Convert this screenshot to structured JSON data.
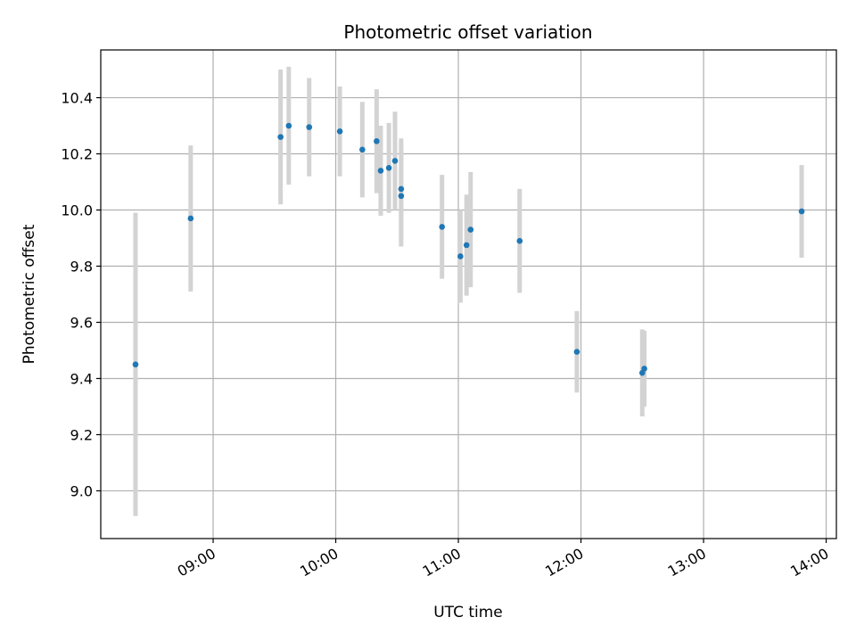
{
  "chart_data": {
    "type": "scatter",
    "title": "Photometric offset variation",
    "xlabel": "UTC time",
    "ylabel": "Photometric offset",
    "x_range": [
      "08:05",
      "14:05"
    ],
    "ylim": [
      8.83,
      10.57
    ],
    "x_ticks": [
      "09:00",
      "10:00",
      "11:00",
      "12:00",
      "13:00",
      "14:00"
    ],
    "y_ticks": [
      9.0,
      9.2,
      9.4,
      9.6,
      9.8,
      10.0,
      10.2,
      10.4
    ],
    "y_tick_labels": [
      "9.0",
      "9.2",
      "9.4",
      "9.6",
      "9.8",
      "10.0",
      "10.2",
      "10.4"
    ],
    "grid": true,
    "marker_color": "#1f77b4",
    "errorbar_color": "#d3d3d3",
    "points": [
      {
        "t": "08:22",
        "y": 9.45,
        "yerr": 0.54
      },
      {
        "t": "08:49",
        "y": 9.97,
        "yerr": 0.26
      },
      {
        "t": "09:33",
        "y": 10.26,
        "yerr": 0.24
      },
      {
        "t": "09:37",
        "y": 10.3,
        "yerr": 0.21
      },
      {
        "t": "09:47",
        "y": 10.295,
        "yerr": 0.175
      },
      {
        "t": "10:02",
        "y": 10.28,
        "yerr": 0.16
      },
      {
        "t": "10:13",
        "y": 10.215,
        "yerr": 0.17
      },
      {
        "t": "10:20",
        "y": 10.245,
        "yerr": 0.185
      },
      {
        "t": "10:22",
        "y": 10.14,
        "yerr": 0.16
      },
      {
        "t": "10:26",
        "y": 10.15,
        "yerr": 0.16
      },
      {
        "t": "10:29",
        "y": 10.175,
        "yerr": 0.175
      },
      {
        "t": "10:32",
        "y": 10.075,
        "yerr": 0.18
      },
      {
        "t": "10:32",
        "y": 10.05,
        "yerr": 0.18
      },
      {
        "t": "10:52",
        "y": 9.94,
        "yerr": 0.185
      },
      {
        "t": "11:01",
        "y": 9.835,
        "yerr": 0.165
      },
      {
        "t": "11:04",
        "y": 9.875,
        "yerr": 0.18
      },
      {
        "t": "11:06",
        "y": 9.93,
        "yerr": 0.205
      },
      {
        "t": "11:30",
        "y": 9.89,
        "yerr": 0.185
      },
      {
        "t": "11:58",
        "y": 9.495,
        "yerr": 0.145
      },
      {
        "t": "12:30",
        "y": 9.42,
        "yerr": 0.155
      },
      {
        "t": "12:31",
        "y": 9.435,
        "yerr": 0.135
      },
      {
        "t": "13:48",
        "y": 9.995,
        "yerr": 0.165
      }
    ]
  }
}
